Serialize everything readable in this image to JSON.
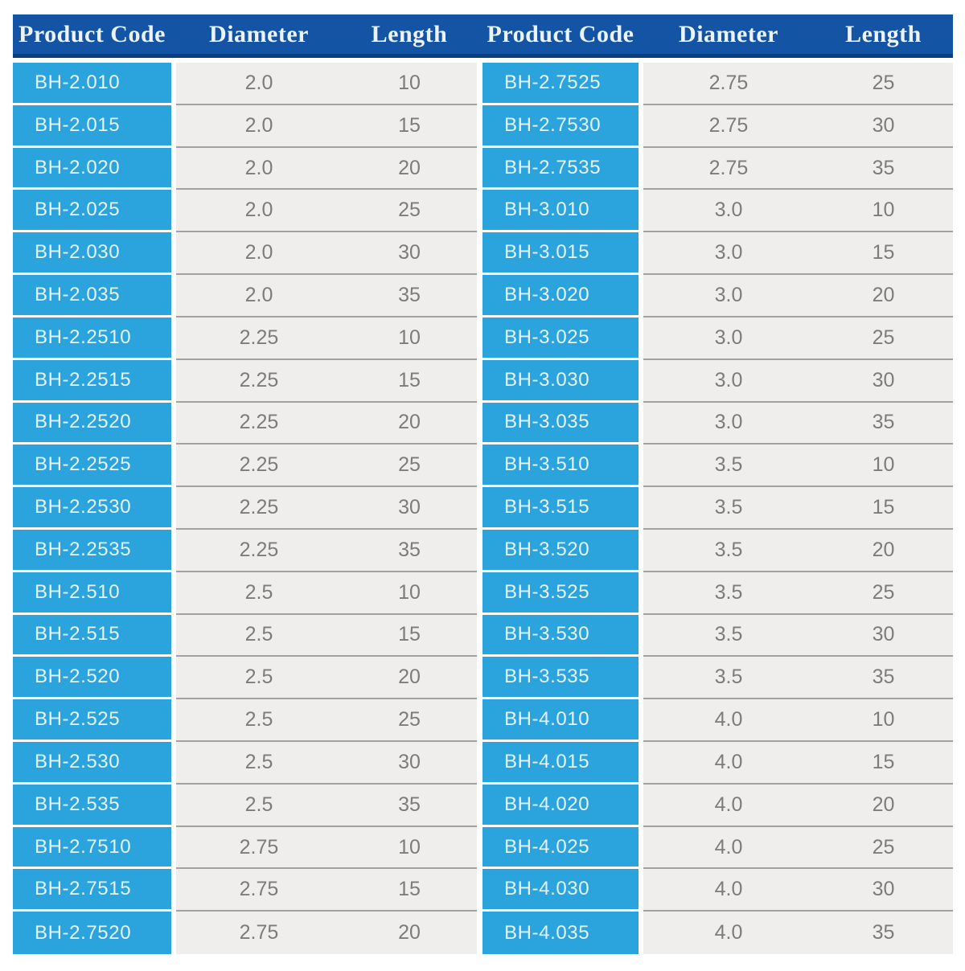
{
  "table": {
    "headers": [
      "Product Code",
      "Diameter",
      "Length",
      "Product Code",
      "Diameter",
      "Length"
    ],
    "colors": {
      "header_bg": "#1355a4",
      "header_strip": "#0d3e7f",
      "header_text": "#edf3fc",
      "code_bg": "#2ba4dd",
      "code_text": "#e8f4fb",
      "value_bg": "#efeeec",
      "value_text": "#7d7c7a",
      "row_border": "#a3a1a0",
      "page_bg": "#ffffff"
    },
    "left_rows": [
      {
        "code": "BH-2.010",
        "diameter": "2.0",
        "length": "10"
      },
      {
        "code": "BH-2.015",
        "diameter": "2.0",
        "length": "15"
      },
      {
        "code": "BH-2.020",
        "diameter": "2.0",
        "length": "20"
      },
      {
        "code": "BH-2.025",
        "diameter": "2.0",
        "length": "25"
      },
      {
        "code": "BH-2.030",
        "diameter": "2.0",
        "length": "30"
      },
      {
        "code": "BH-2.035",
        "diameter": "2.0",
        "length": "35"
      },
      {
        "code": "BH-2.2510",
        "diameter": "2.25",
        "length": "10"
      },
      {
        "code": "BH-2.2515",
        "diameter": "2.25",
        "length": "15"
      },
      {
        "code": "BH-2.2520",
        "diameter": "2.25",
        "length": "20"
      },
      {
        "code": "BH-2.2525",
        "diameter": "2.25",
        "length": "25"
      },
      {
        "code": "BH-2.2530",
        "diameter": "2.25",
        "length": "30"
      },
      {
        "code": "BH-2.2535",
        "diameter": "2.25",
        "length": "35"
      },
      {
        "code": "BH-2.510",
        "diameter": "2.5",
        "length": "10"
      },
      {
        "code": "BH-2.515",
        "diameter": "2.5",
        "length": "15"
      },
      {
        "code": "BH-2.520",
        "diameter": "2.5",
        "length": "20"
      },
      {
        "code": "BH-2.525",
        "diameter": "2.5",
        "length": "25"
      },
      {
        "code": "BH-2.530",
        "diameter": "2.5",
        "length": "30"
      },
      {
        "code": "BH-2.535",
        "diameter": "2.5",
        "length": "35"
      },
      {
        "code": "BH-2.7510",
        "diameter": "2.75",
        "length": "10"
      },
      {
        "code": "BH-2.7515",
        "diameter": "2.75",
        "length": "15"
      },
      {
        "code": "BH-2.7520",
        "diameter": "2.75",
        "length": "20"
      }
    ],
    "right_rows": [
      {
        "code": "BH-2.7525",
        "diameter": "2.75",
        "length": "25"
      },
      {
        "code": "BH-2.7530",
        "diameter": "2.75",
        "length": "30"
      },
      {
        "code": "BH-2.7535",
        "diameter": "2.75",
        "length": "35"
      },
      {
        "code": "BH-3.010",
        "diameter": "3.0",
        "length": "10"
      },
      {
        "code": "BH-3.015",
        "diameter": "3.0",
        "length": "15"
      },
      {
        "code": "BH-3.020",
        "diameter": "3.0",
        "length": "20"
      },
      {
        "code": "BH-3.025",
        "diameter": "3.0",
        "length": "25"
      },
      {
        "code": "BH-3.030",
        "diameter": "3.0",
        "length": "30"
      },
      {
        "code": "BH-3.035",
        "diameter": "3.0",
        "length": "35"
      },
      {
        "code": "BH-3.510",
        "diameter": "3.5",
        "length": "10"
      },
      {
        "code": "BH-3.515",
        "diameter": "3.5",
        "length": "15"
      },
      {
        "code": "BH-3.520",
        "diameter": "3.5",
        "length": "20"
      },
      {
        "code": "BH-3.525",
        "diameter": "3.5",
        "length": "25"
      },
      {
        "code": "BH-3.530",
        "diameter": "3.5",
        "length": "30"
      },
      {
        "code": "BH-3.535",
        "diameter": "3.5",
        "length": "35"
      },
      {
        "code": "BH-4.010",
        "diameter": "4.0",
        "length": "10"
      },
      {
        "code": "BH-4.015",
        "diameter": "4.0",
        "length": "15"
      },
      {
        "code": "BH-4.020",
        "diameter": "4.0",
        "length": "20"
      },
      {
        "code": "BH-4.025",
        "diameter": "4.0",
        "length": "25"
      },
      {
        "code": "BH-4.030",
        "diameter": "4.0",
        "length": "30"
      },
      {
        "code": "BH-4.035",
        "diameter": "4.0",
        "length": "35"
      }
    ]
  }
}
